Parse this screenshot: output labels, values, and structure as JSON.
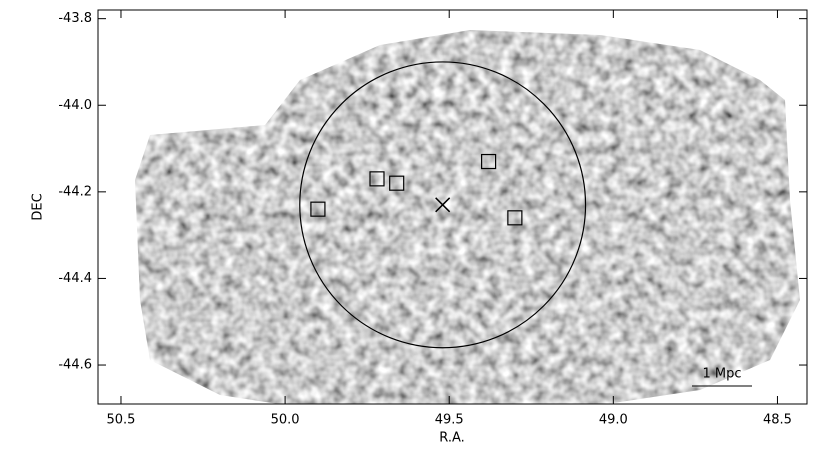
{
  "chart_data": {
    "type": "scatter",
    "xlabel": "R.A.",
    "ylabel": "DEC",
    "xlim": [
      50.57,
      48.41
    ],
    "ylim": [
      -44.69,
      -43.78
    ],
    "xticks": [
      50.5,
      {
        "value": 50,
        "label": "50.0"
      },
      49.5,
      {
        "value": 49,
        "label": "49.0"
      },
      48.5
    ],
    "yticks": [
      -43.8,
      {
        "value": -44,
        "label": "-44.0"
      },
      -44.2,
      -44.4,
      -44.6
    ],
    "series": [
      {
        "marker": "square",
        "color": "#000000",
        "x": [
          49.72,
          49.66,
          49.9,
          49.38,
          49.3
        ],
        "y": [
          -44.17,
          -44.18,
          -44.24,
          -44.13,
          -44.26
        ]
      },
      {
        "marker": "x",
        "color": "#000000",
        "x": [
          49.52
        ],
        "y": [
          -44.23
        ]
      }
    ],
    "circle": {
      "x": 49.52,
      "y": -44.23,
      "radius": 0.33
    },
    "scale_bar_label": "1 Mpc"
  }
}
